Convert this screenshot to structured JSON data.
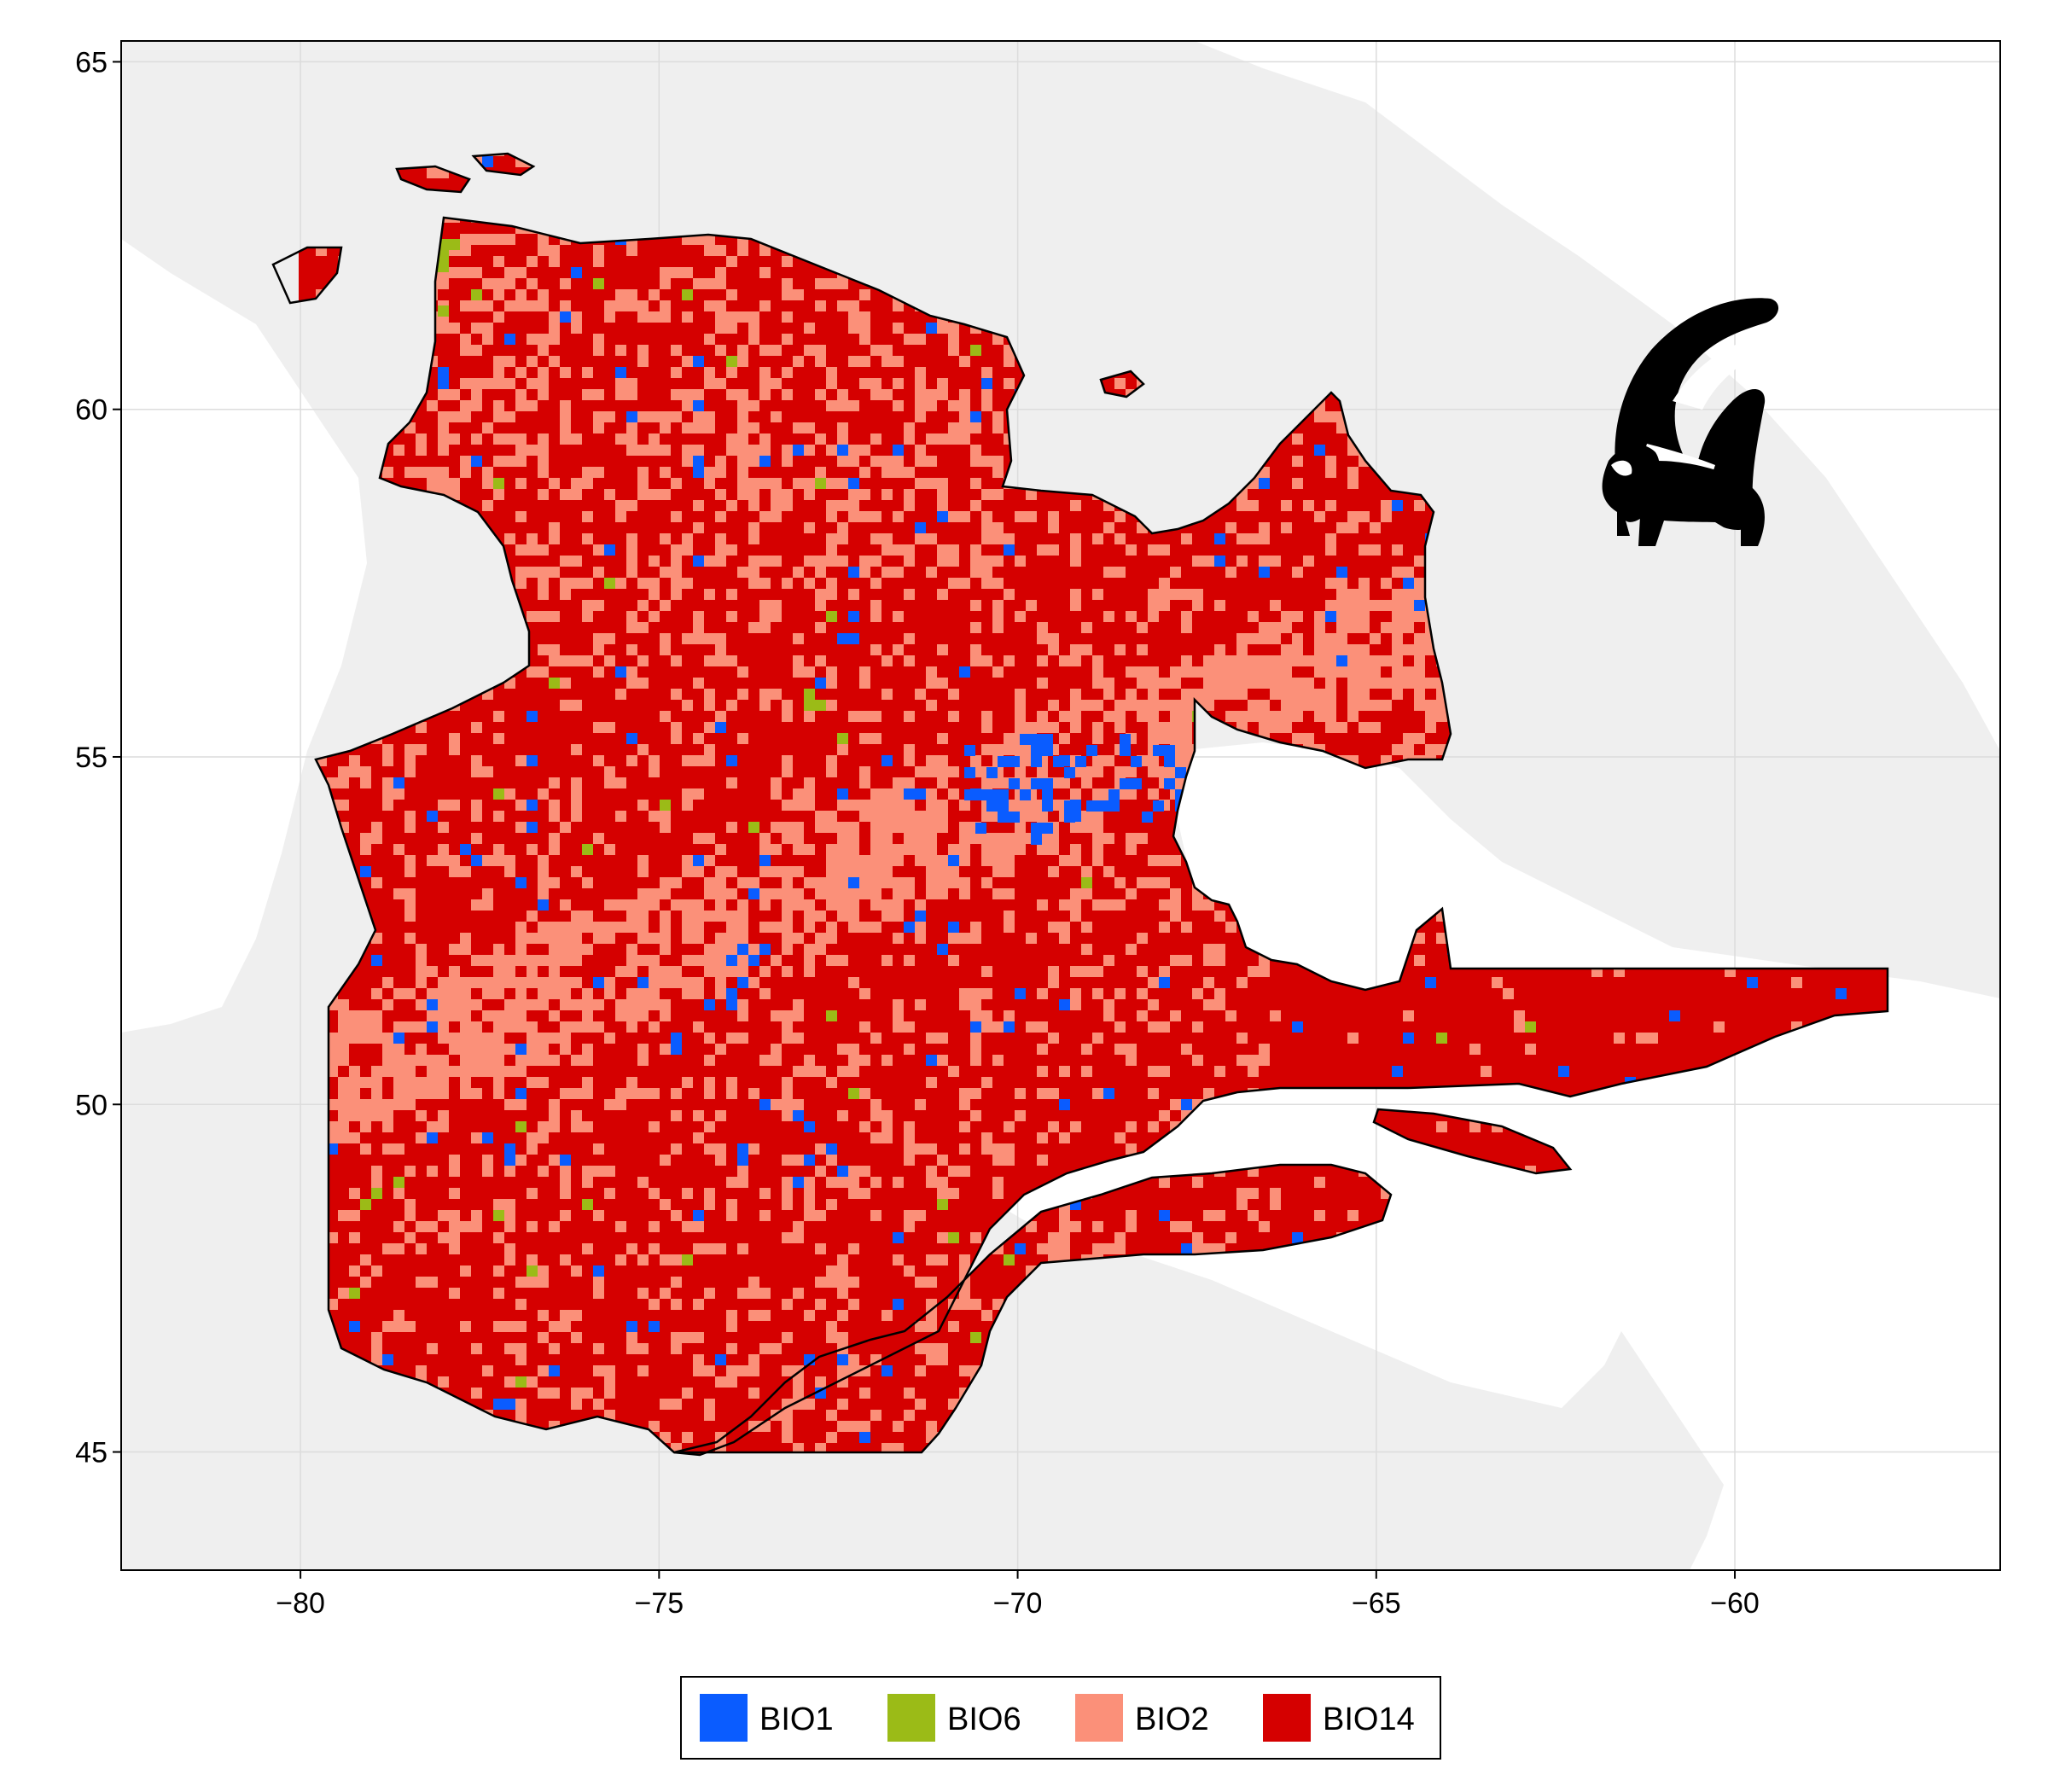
{
  "chart_data": {
    "type": "heatmap",
    "title": "",
    "xlabel": "",
    "ylabel": "",
    "xlim": [
      -82.5,
      -56.3
    ],
    "ylim": [
      43.3,
      65.3
    ],
    "x_ticks": [
      "−80",
      "−75",
      "−70",
      "−65",
      "−60"
    ],
    "x_tick_values": [
      -80,
      -75,
      -70,
      -65,
      -60
    ],
    "y_ticks": [
      "45",
      "50",
      "55",
      "60",
      "65"
    ],
    "y_tick_values": [
      45,
      50,
      55,
      60,
      65
    ],
    "grid": true,
    "legend_position": "bottom",
    "background_color": "#efefef",
    "categories": [
      {
        "name": "BIO1",
        "color": "#0a5cff"
      },
      {
        "name": "BIO6",
        "color": "#9bbb17"
      },
      {
        "name": "BIO2",
        "color": "#fb9079"
      },
      {
        "name": "BIO14",
        "color": "#d50000"
      }
    ],
    "icon": "skunk-silhouette-icon"
  }
}
